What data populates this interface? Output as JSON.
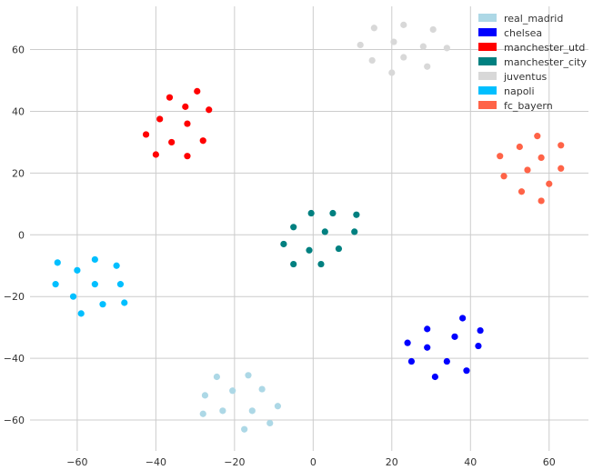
{
  "chart_data": {
    "type": "scatter",
    "xlim": [
      -72,
      70
    ],
    "ylim": [
      -70,
      74
    ],
    "xticks": [
      -60,
      -40,
      -20,
      0,
      20,
      40,
      60
    ],
    "yticks": [
      -60,
      -40,
      -20,
      0,
      20,
      40,
      60
    ],
    "grid": true,
    "legend_position": "top-right",
    "series": [
      {
        "name": "real_madrid",
        "color": "#add8e6",
        "points": [
          [
            -28,
            -58
          ],
          [
            -27.5,
            -52
          ],
          [
            -24.5,
            -46
          ],
          [
            -23,
            -57
          ],
          [
            -20.5,
            -50.5
          ],
          [
            -17.5,
            -63
          ],
          [
            -16.5,
            -45.5
          ],
          [
            -15.5,
            -57
          ],
          [
            -13,
            -50
          ],
          [
            -11,
            -61
          ],
          [
            -9,
            -55.5
          ]
        ]
      },
      {
        "name": "chelsea",
        "color": "#0000ff",
        "points": [
          [
            24,
            -35
          ],
          [
            25,
            -41
          ],
          [
            29,
            -36.5
          ],
          [
            29,
            -30.5
          ],
          [
            31,
            -46
          ],
          [
            34,
            -41
          ],
          [
            36,
            -33
          ],
          [
            38,
            -27
          ],
          [
            39,
            -44
          ],
          [
            42,
            -36
          ],
          [
            42.5,
            -31
          ]
        ]
      },
      {
        "name": "manchester_utd",
        "color": "#ff0000",
        "points": [
          [
            -42.5,
            32.5
          ],
          [
            -40,
            26
          ],
          [
            -39,
            37.5
          ],
          [
            -36.5,
            44.5
          ],
          [
            -36,
            30
          ],
          [
            -32.5,
            41.5
          ],
          [
            -32,
            36
          ],
          [
            -32,
            25.5
          ],
          [
            -29.5,
            46.5
          ],
          [
            -28,
            30.5
          ],
          [
            -26.5,
            40.5
          ]
        ]
      },
      {
        "name": "manchester_city",
        "color": "#008080",
        "points": [
          [
            -7.5,
            -3
          ],
          [
            -5,
            -9.5
          ],
          [
            -5,
            2.5
          ],
          [
            -1,
            -5
          ],
          [
            -0.5,
            7
          ],
          [
            2,
            -9.5
          ],
          [
            3,
            1
          ],
          [
            5,
            7
          ],
          [
            6.5,
            -4.5
          ],
          [
            10.5,
            1
          ],
          [
            11,
            6.5
          ]
        ]
      },
      {
        "name": "juventus",
        "color": "#d8d8d8",
        "points": [
          [
            12,
            61.5
          ],
          [
            15,
            56.5
          ],
          [
            15.5,
            67
          ],
          [
            20,
            52.5
          ],
          [
            20.5,
            62.5
          ],
          [
            23,
            57.5
          ],
          [
            23,
            68
          ],
          [
            28,
            61
          ],
          [
            29,
            54.5
          ],
          [
            30.5,
            66.5
          ],
          [
            34,
            60.5
          ]
        ]
      },
      {
        "name": "napoli",
        "color": "#00bfff",
        "points": [
          [
            -65.5,
            -16
          ],
          [
            -65,
            -9
          ],
          [
            -61,
            -20
          ],
          [
            -60,
            -11.5
          ],
          [
            -59,
            -25.5
          ],
          [
            -55.5,
            -8
          ],
          [
            -55.5,
            -16
          ],
          [
            -53.5,
            -22.5
          ],
          [
            -50,
            -10
          ],
          [
            -49,
            -16
          ],
          [
            -48,
            -22
          ]
        ]
      },
      {
        "name": "fc_bayern",
        "color": "#ff6347",
        "points": [
          [
            47.5,
            25.5
          ],
          [
            48.5,
            19
          ],
          [
            52.5,
            28.5
          ],
          [
            53,
            14
          ],
          [
            54.5,
            21
          ],
          [
            57,
            32
          ],
          [
            58,
            25
          ],
          [
            58,
            11
          ],
          [
            60,
            16.5
          ],
          [
            63,
            29
          ],
          [
            63,
            21.5
          ]
        ]
      }
    ]
  }
}
